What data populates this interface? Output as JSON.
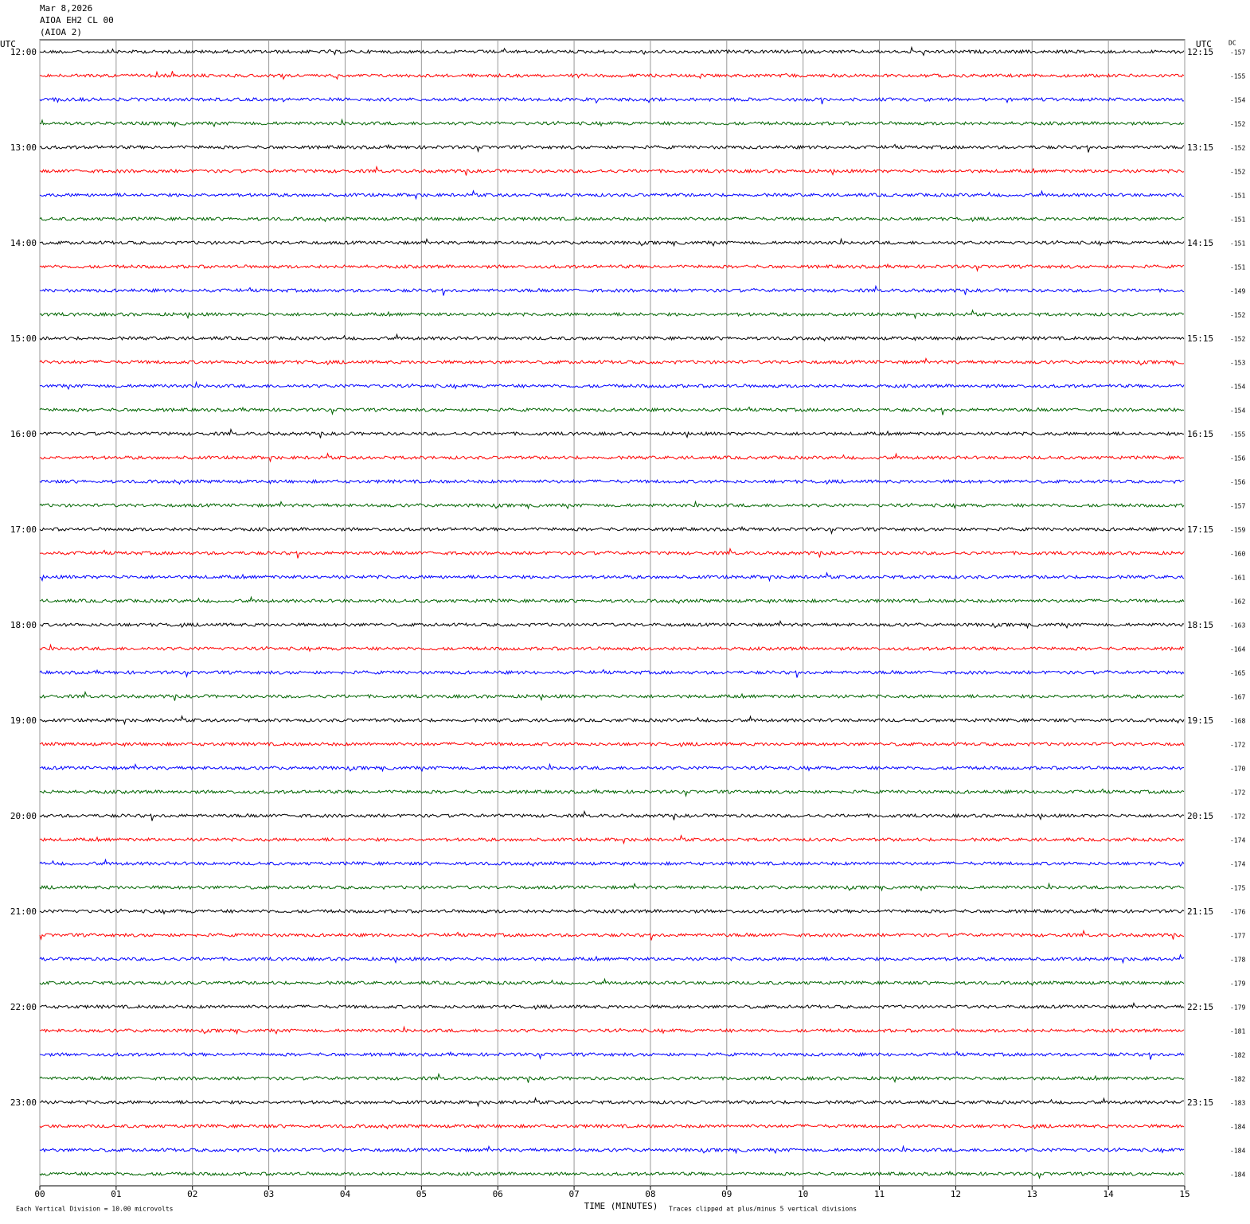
{
  "chart_data": {
    "type": "helicorder",
    "title": "Mar 8,2026",
    "station": "AIOA EH2 CL 00",
    "subtitle": "(AIOA 2)",
    "left_axis_label": "UTC",
    "right_axis_label": "UTC",
    "dc_label": "DC",
    "left_labels": [
      "12:00",
      "13:00",
      "14:00",
      "15:00",
      "16:00",
      "17:00",
      "18:00",
      "19:00",
      "20:00",
      "21:00",
      "22:00",
      "23:00"
    ],
    "right_labels": [
      "12:15",
      "13:15",
      "14:15",
      "15:15",
      "16:15",
      "17:15",
      "18:15",
      "19:15",
      "20:15",
      "21:15",
      "22:15",
      "23:15"
    ],
    "dc": [
      -157,
      -155,
      -154,
      -152,
      -152,
      -152,
      -151,
      -151,
      -151,
      -151,
      -149,
      -152,
      -152,
      -153,
      -154,
      -154,
      -155,
      -156,
      -156,
      -157,
      -159,
      -160,
      -161,
      -162,
      -163,
      -164,
      -165,
      -167,
      -168,
      -172,
      -170,
      -172,
      -172,
      -174,
      -174,
      -175,
      -176,
      -177,
      -178,
      -179,
      -179,
      -181,
      -182,
      -182,
      -183,
      -184,
      -184,
      -184
    ],
    "trace_colors": [
      "#000000",
      "#ff0000",
      "#0000ff",
      "#006400"
    ],
    "xlabel": "TIME (MINUTES)",
    "xlim": [
      0,
      15
    ],
    "xticks": [
      {
        "value": 0,
        "label": "00"
      },
      {
        "value": 1,
        "label": "01"
      },
      {
        "value": 2,
        "label": "02"
      },
      {
        "value": 3,
        "label": "03"
      },
      {
        "value": 4,
        "label": "04"
      },
      {
        "value": 5,
        "label": "05"
      },
      {
        "value": 6,
        "label": "06"
      },
      {
        "value": 7,
        "label": "07"
      },
      {
        "value": 8,
        "label": "08"
      },
      {
        "value": 9,
        "label": "09"
      },
      {
        "value": 10,
        "label": "10"
      },
      {
        "value": 11,
        "label": "11"
      },
      {
        "value": 12,
        "label": "12"
      },
      {
        "value": 13,
        "label": "13"
      },
      {
        "value": 14,
        "label": "14"
      },
      {
        "value": 15,
        "label": "15"
      }
    ],
    "grid": true,
    "scale_note": "Each Vertical Division =   10.00 microvolts",
    "clip_note": "Traces clipped at plus/minus 5 vertical divisions"
  }
}
